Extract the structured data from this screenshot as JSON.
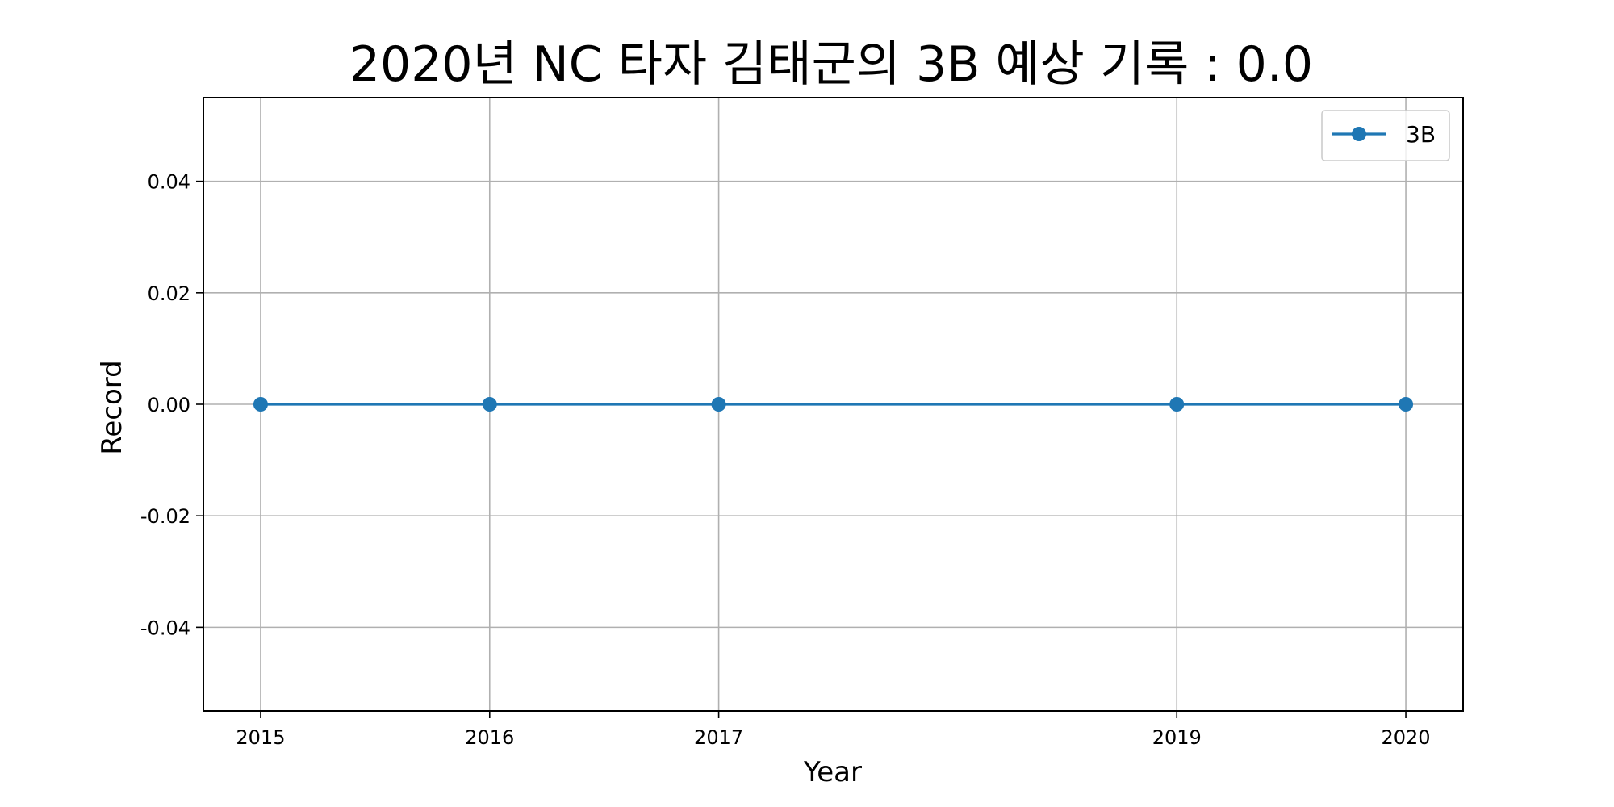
{
  "chart_data": {
    "type": "line",
    "title": "2020년 NC 타자 김태군의 3B 예상 기록 : 0.0",
    "xlabel": "Year",
    "ylabel": "Record",
    "x": [
      2015,
      2016,
      2017,
      2019,
      2020
    ],
    "xlim": [
      2014.75,
      2020.25
    ],
    "ylim": [
      -0.055,
      0.055
    ],
    "x_ticks": [
      2015,
      2016,
      2017,
      2019,
      2020
    ],
    "x_tick_labels": [
      "2015",
      "2016",
      "2017",
      "2019",
      "2020"
    ],
    "y_ticks": [
      -0.04,
      -0.02,
      0.0,
      0.02,
      0.04
    ],
    "y_tick_labels": [
      "-0.04",
      "-0.02",
      "0.00",
      "0.02",
      "0.04"
    ],
    "grid": true,
    "legend_position": "top-right",
    "series": [
      {
        "name": "3B",
        "values": [
          0.0,
          0.0,
          0.0,
          0.0,
          0.0
        ],
        "color": "#1f77b4",
        "marker": "circle"
      }
    ]
  }
}
